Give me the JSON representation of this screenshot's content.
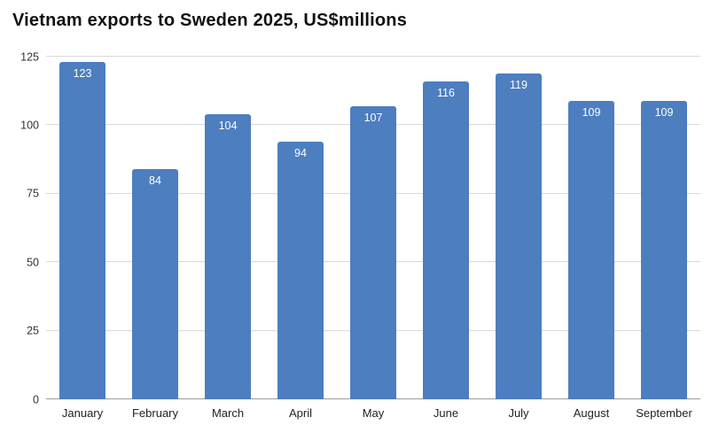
{
  "title": "Vietnam exports to Sweden 2025, US$millions",
  "chart_data": {
    "type": "bar",
    "title": "Vietnam exports to Sweden 2025, US$millions",
    "categories": [
      "January",
      "February",
      "March",
      "April",
      "May",
      "June",
      "July",
      "August",
      "September"
    ],
    "values": [
      123,
      84,
      104,
      94,
      107,
      116,
      119,
      109,
      109
    ],
    "xlabel": "",
    "ylabel": "",
    "ylim": [
      0,
      125
    ],
    "yticks": [
      0,
      25,
      50,
      75,
      100,
      125
    ],
    "grid": true,
    "legend": false,
    "bar_color": "#4d7ebf",
    "value_label_color": "#ffffff",
    "value_labels_position": "inside-top"
  }
}
